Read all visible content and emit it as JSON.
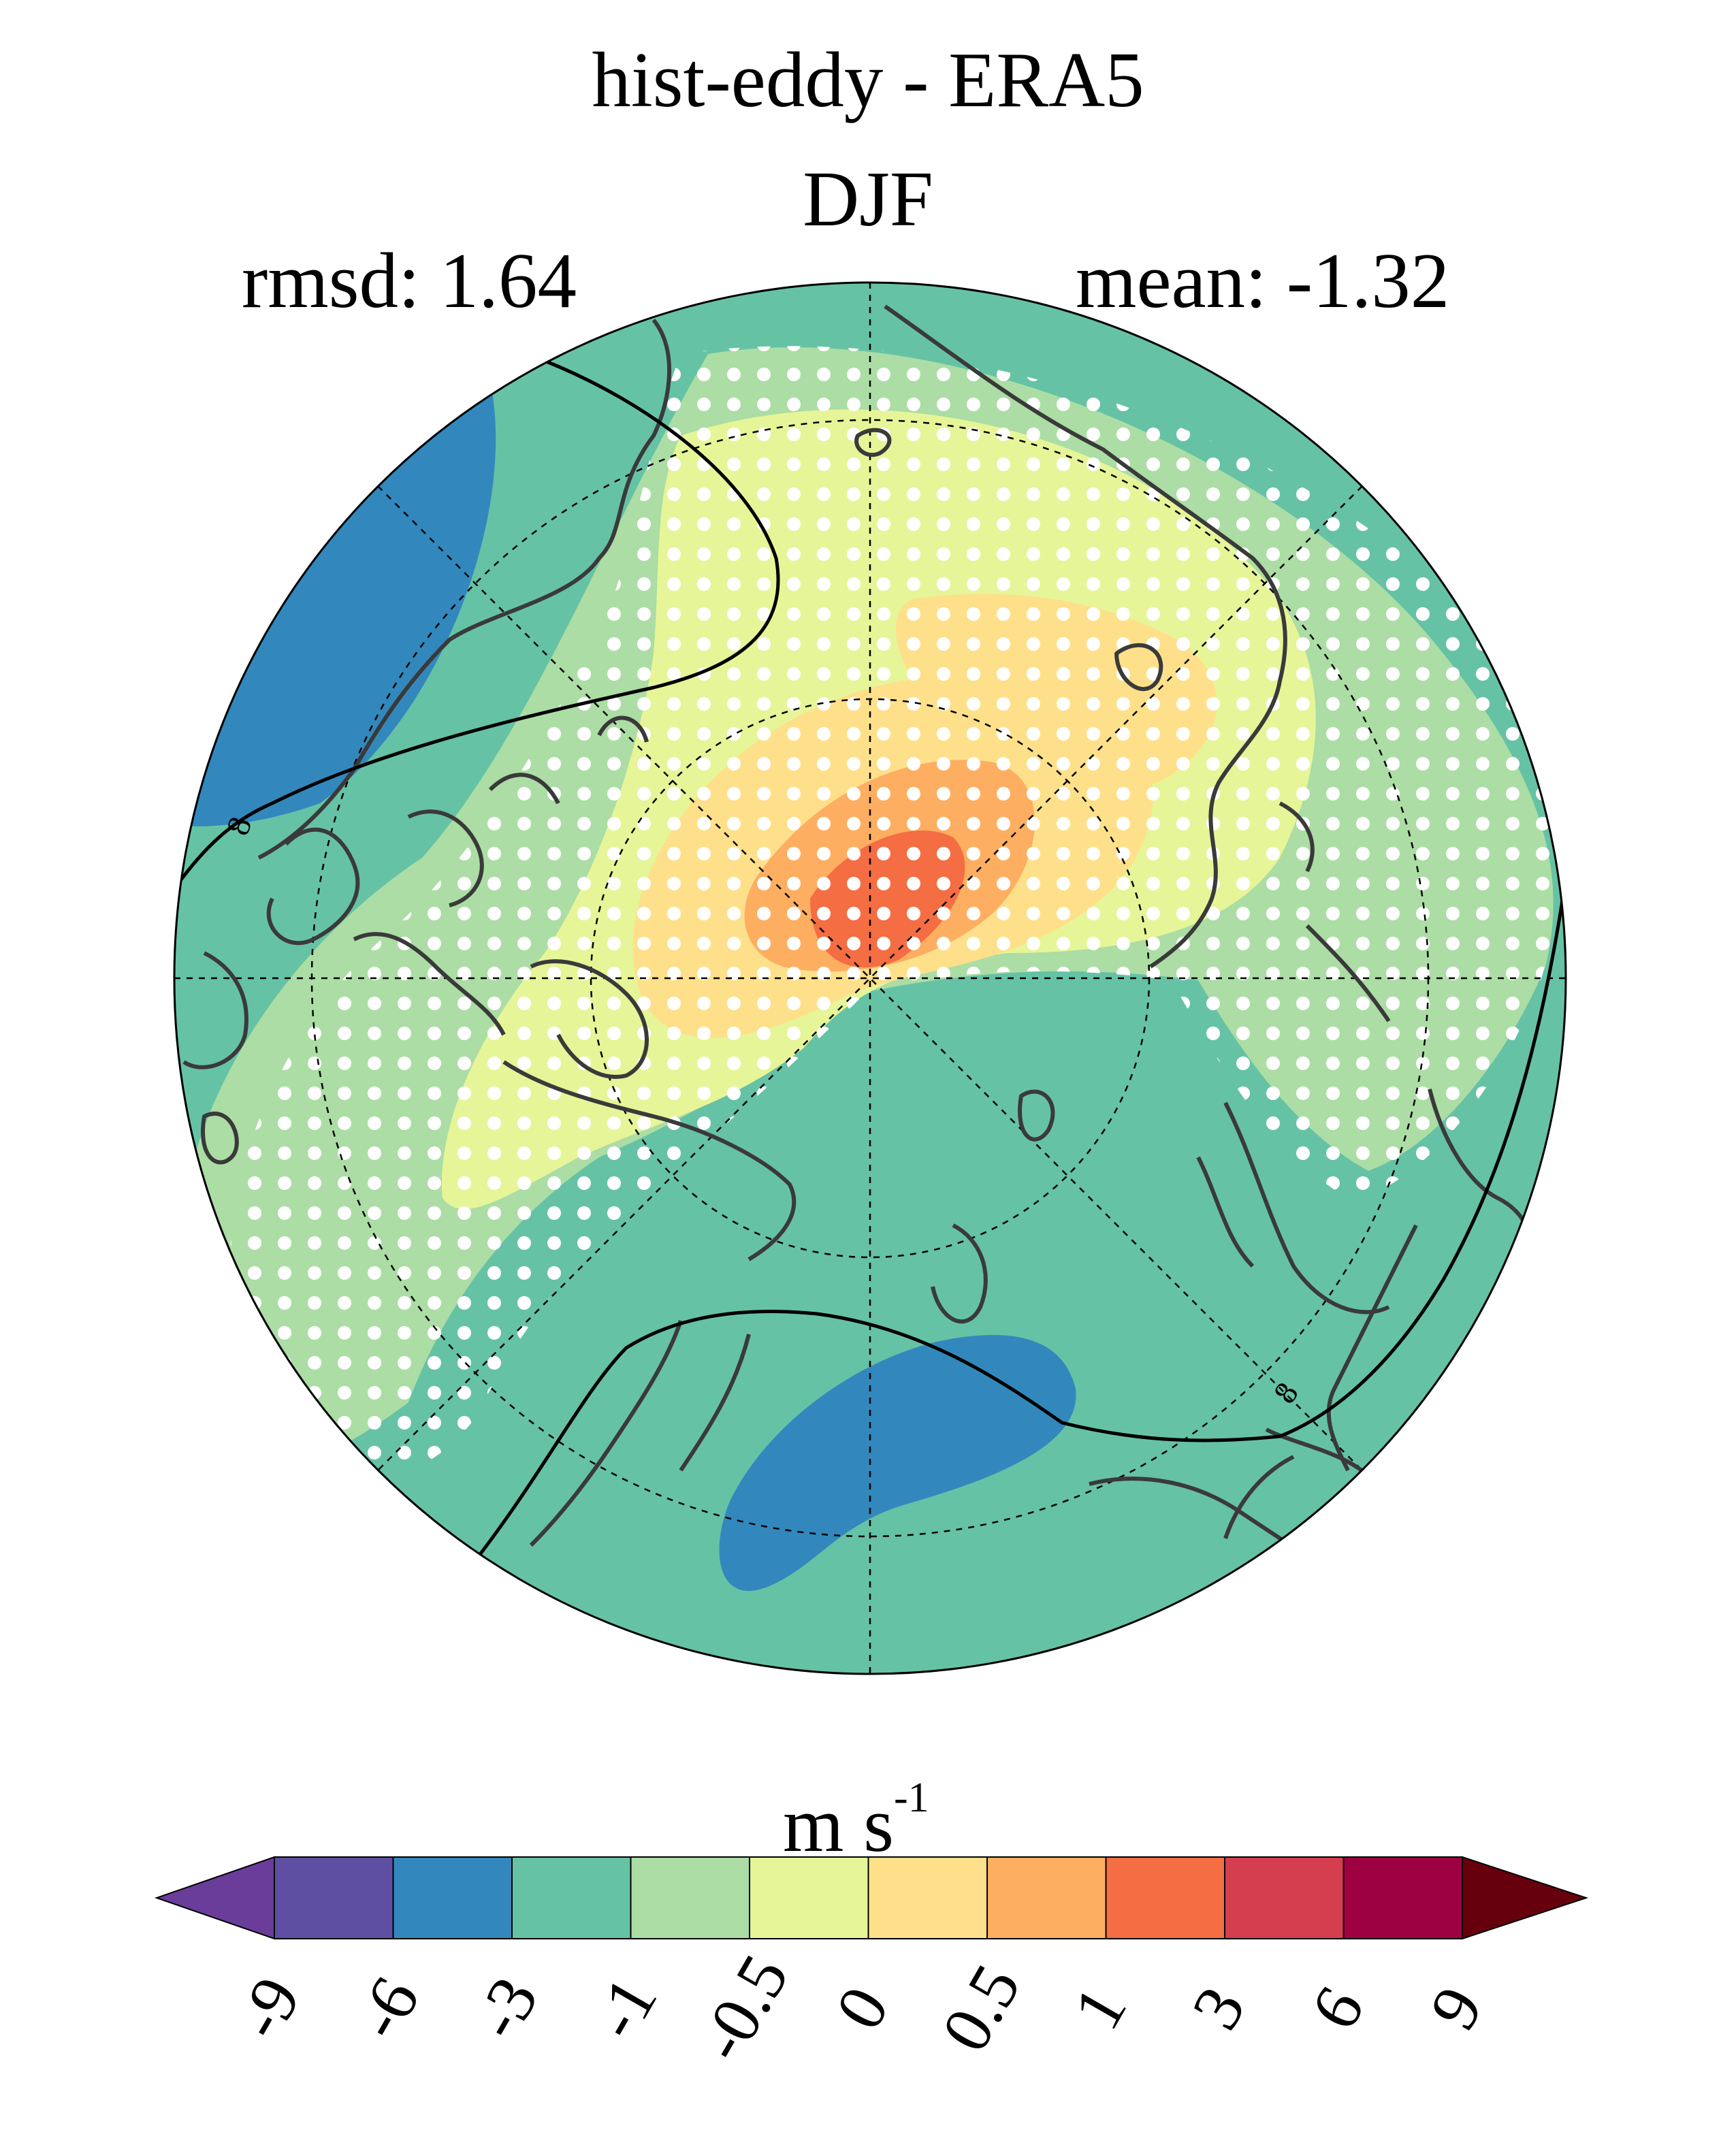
{
  "title": "hist-eddy - ERA5",
  "season": "DJF",
  "stats": {
    "rmsd_label": "rmsd: 1.64",
    "mean_label": "mean: -1.32"
  },
  "colorbar": {
    "units_base": "m s",
    "units_exp": "-1",
    "tick_labels": [
      "-9",
      "-6",
      "-3",
      "-1",
      "-0.5",
      "0",
      "0.5",
      "1",
      "3",
      "6",
      "9"
    ],
    "colors": [
      "#5e4fa2",
      "#3288bd",
      "#66c2a5",
      "#abdda4",
      "#e6f598",
      "#fee08b",
      "#fdae61",
      "#f46d43",
      "#d53e4f",
      "#9e0142"
    ],
    "under_color": "#6a3d9a",
    "over_color": "#67000d"
  },
  "map": {
    "projection": "north-polar-stereographic",
    "contour_label": "8"
  }
}
